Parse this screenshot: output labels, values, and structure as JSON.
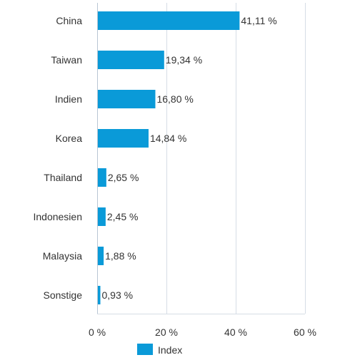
{
  "chart_data": {
    "type": "bar",
    "orientation": "horizontal",
    "categories": [
      "China",
      "Taiwan",
      "Indien",
      "Korea",
      "Thailand",
      "Indonesien",
      "Malaysia",
      "Sonstige"
    ],
    "series": [
      {
        "name": "Index",
        "values": [
          41.11,
          19.34,
          16.8,
          14.84,
          2.65,
          2.45,
          1.88,
          0.93
        ],
        "labels": [
          "41,11 %",
          "19,34 %",
          "16,80 %",
          "14,84 %",
          "2,65 %",
          "2,45 %",
          "1,88 %",
          "0,93 %"
        ]
      }
    ],
    "xlim": [
      0,
      60
    ],
    "xticks": [
      0,
      20,
      40,
      60
    ],
    "xtick_labels": [
      "0 %",
      "20 %",
      "40 %",
      "60 %"
    ],
    "grid": true,
    "legend_position": "bottom",
    "colors": {
      "bar": "#0a9ad8",
      "grid": "#d6dde6",
      "axis": "#b9c6d3",
      "text": "#333333"
    }
  }
}
